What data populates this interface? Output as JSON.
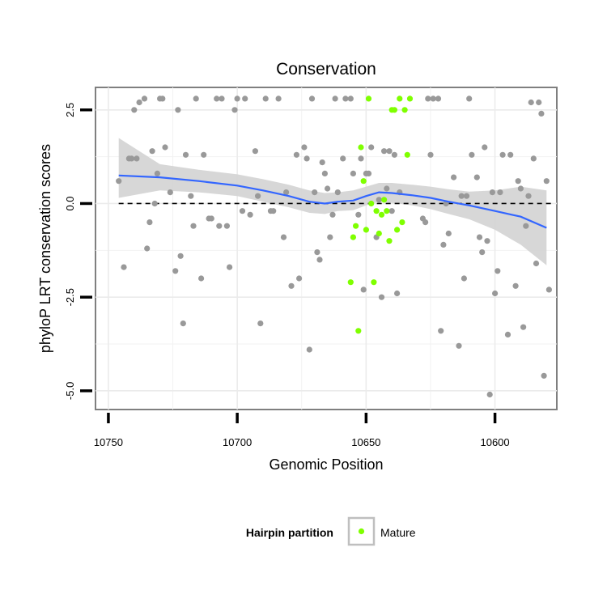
{
  "chart_data": {
    "type": "scatter",
    "title": "Conservation",
    "xlabel": "Genomic Position",
    "ylabel": "phyloP LRT conservation scores",
    "x_reversed": true,
    "xlim": [
      10755,
      10576
    ],
    "ylim": [
      -5.5,
      3.1
    ],
    "x_ticks": [
      10750,
      10700,
      10650,
      10600
    ],
    "x_tick_labels": [
      "10750",
      "10700",
      "10650",
      "10600"
    ],
    "y_ticks": [
      -5.0,
      -2.5,
      0.0,
      2.5
    ],
    "y_tick_labels": [
      "-5.0",
      "-2.5",
      "0.0",
      "2.5"
    ],
    "grid": true,
    "reference_line": {
      "y": 0,
      "style": "dashed"
    },
    "legend": {
      "title": "Hairpin partition",
      "position": "bottom",
      "entries": [
        {
          "label": "Mature",
          "color": "#7fff00"
        }
      ]
    },
    "colors": {
      "other": "#999999",
      "mature": "#7fff00",
      "smooth": "#3366ff",
      "band": "#d3d3d3"
    },
    "series": [
      {
        "group": "other",
        "points": [
          [
            10746,
            0.6
          ],
          [
            10744,
            -1.7
          ],
          [
            10742,
            1.2
          ],
          [
            10741,
            1.2
          ],
          [
            10740,
            2.5
          ],
          [
            10739,
            1.2
          ],
          [
            10738,
            2.7
          ],
          [
            10736,
            2.8
          ],
          [
            10735,
            -1.2
          ],
          [
            10734,
            -0.5
          ],
          [
            10733,
            1.4
          ],
          [
            10732,
            0.0
          ],
          [
            10731,
            0.8
          ],
          [
            10730,
            2.8
          ],
          [
            10729,
            2.8
          ],
          [
            10728,
            1.5
          ],
          [
            10726,
            0.3
          ],
          [
            10724,
            -1.8
          ],
          [
            10723,
            2.5
          ],
          [
            10722,
            -1.4
          ],
          [
            10721,
            -3.2
          ],
          [
            10720,
            1.3
          ],
          [
            10718,
            0.2
          ],
          [
            10717,
            -0.6
          ],
          [
            10716,
            2.8
          ],
          [
            10714,
            -2.0
          ],
          [
            10713,
            1.3
          ],
          [
            10711,
            -0.4
          ],
          [
            10710,
            -0.4
          ],
          [
            10708,
            2.8
          ],
          [
            10707,
            -0.6
          ],
          [
            10706,
            2.8
          ],
          [
            10704,
            -0.6
          ],
          [
            10703,
            -1.7
          ],
          [
            10701,
            2.5
          ],
          [
            10700,
            2.8
          ],
          [
            10698,
            -0.2
          ],
          [
            10697,
            2.8
          ],
          [
            10695,
            -0.3
          ],
          [
            10693,
            1.4
          ],
          [
            10692,
            0.2
          ],
          [
            10691,
            -3.2
          ],
          [
            10689,
            2.8
          ],
          [
            10687,
            -0.2
          ],
          [
            10686,
            -0.2
          ],
          [
            10684,
            2.8
          ],
          [
            10682,
            -0.9
          ],
          [
            10681,
            0.3
          ],
          [
            10679,
            -2.2
          ],
          [
            10677,
            1.3
          ],
          [
            10676,
            -2.0
          ],
          [
            10674,
            1.5
          ],
          [
            10673,
            1.2
          ],
          [
            10672,
            -3.9
          ],
          [
            10671,
            2.8
          ],
          [
            10670,
            0.3
          ],
          [
            10669,
            -1.3
          ],
          [
            10668,
            -1.5
          ],
          [
            10667,
            1.1
          ],
          [
            10666,
            0.8
          ],
          [
            10665,
            0.4
          ],
          [
            10664,
            -0.9
          ],
          [
            10663,
            -0.3
          ],
          [
            10662,
            2.8
          ],
          [
            10661,
            0.3
          ],
          [
            10659,
            1.2
          ],
          [
            10658,
            2.8
          ],
          [
            10656,
            2.8
          ],
          [
            10655,
            0.8
          ],
          [
            10653,
            -0.3
          ],
          [
            10652,
            1.2
          ],
          [
            10651,
            -2.3
          ],
          [
            10650,
            0.8
          ],
          [
            10649,
            0.8
          ],
          [
            10648,
            1.5
          ],
          [
            10646,
            -0.9
          ],
          [
            10645,
            0.1
          ],
          [
            10644,
            -2.5
          ],
          [
            10643,
            1.4
          ],
          [
            10642,
            0.4
          ],
          [
            10641,
            1.4
          ],
          [
            10640,
            -0.2
          ],
          [
            10639,
            1.3
          ],
          [
            10638,
            -2.4
          ],
          [
            10637,
            0.3
          ]
        ]
      },
      {
        "group": "other",
        "points": [
          [
            10628,
            -0.4
          ],
          [
            10627,
            -0.5
          ],
          [
            10626,
            2.8
          ],
          [
            10625,
            1.3
          ],
          [
            10624,
            2.8
          ],
          [
            10622,
            2.8
          ],
          [
            10621,
            -3.4
          ],
          [
            10620,
            -1.1
          ],
          [
            10619,
            0.0
          ],
          [
            10618,
            -0.8
          ],
          [
            10616,
            0.7
          ],
          [
            10614,
            -3.8
          ],
          [
            10613,
            0.2
          ],
          [
            10612,
            -2.0
          ],
          [
            10611,
            0.2
          ],
          [
            10610,
            2.8
          ],
          [
            10609,
            1.3
          ],
          [
            10607,
            0.7
          ],
          [
            10606,
            -0.9
          ],
          [
            10605,
            -1.3
          ],
          [
            10604,
            1.5
          ],
          [
            10603,
            -1.0
          ],
          [
            10602,
            -5.1
          ],
          [
            10601,
            0.3
          ],
          [
            10600,
            -2.4
          ],
          [
            10599,
            -1.8
          ],
          [
            10598,
            0.3
          ],
          [
            10597,
            1.3
          ],
          [
            10595,
            -3.5
          ],
          [
            10594,
            1.3
          ],
          [
            10592,
            -2.2
          ],
          [
            10591,
            0.6
          ],
          [
            10590,
            0.4
          ],
          [
            10589,
            -3.3
          ],
          [
            10588,
            -0.6
          ],
          [
            10587,
            0.2
          ],
          [
            10586,
            2.7
          ],
          [
            10585,
            1.2
          ],
          [
            10584,
            -1.6
          ],
          [
            10583,
            2.7
          ],
          [
            10582,
            2.4
          ],
          [
            10581,
            -4.6
          ],
          [
            10580,
            0.6
          ],
          [
            10579,
            -2.3
          ]
        ]
      },
      {
        "group": "mature",
        "points": [
          [
            10656,
            -2.1
          ],
          [
            10655,
            -0.9
          ],
          [
            10654,
            -0.6
          ],
          [
            10653,
            -3.4
          ],
          [
            10652,
            1.5
          ],
          [
            10651,
            0.6
          ],
          [
            10650,
            -0.7
          ],
          [
            10649,
            2.8
          ],
          [
            10648,
            0.0
          ],
          [
            10647,
            -2.1
          ],
          [
            10646,
            -0.2
          ],
          [
            10645,
            -0.8
          ],
          [
            10644,
            -0.3
          ],
          [
            10643,
            0.1
          ],
          [
            10642,
            -0.2
          ],
          [
            10641,
            -1.0
          ],
          [
            10640,
            2.5
          ],
          [
            10639,
            2.5
          ],
          [
            10638,
            -0.7
          ],
          [
            10637,
            2.8
          ],
          [
            10636,
            -0.5
          ],
          [
            10635,
            2.5
          ],
          [
            10634,
            1.3
          ],
          [
            10633,
            2.8
          ]
        ]
      }
    ],
    "smooth": {
      "x": [
        10746,
        10730,
        10715,
        10700,
        10690,
        10680,
        10672,
        10666,
        10661,
        10655,
        10650,
        10645,
        10640,
        10632,
        10625,
        10618,
        10610,
        10600,
        10590,
        10580
      ],
      "y": [
        0.75,
        0.7,
        0.6,
        0.48,
        0.35,
        0.2,
        0.05,
        0.0,
        0.05,
        0.08,
        0.2,
        0.3,
        0.28,
        0.22,
        0.15,
        0.05,
        -0.05,
        -0.2,
        -0.35,
        -0.65
      ],
      "lower": [
        0.15,
        0.35,
        0.3,
        0.2,
        0.05,
        -0.1,
        -0.25,
        -0.28,
        -0.2,
        -0.18,
        -0.05,
        0.05,
        0.02,
        -0.05,
        -0.15,
        -0.28,
        -0.42,
        -0.7,
        -1.1,
        -1.65
      ],
      "upper": [
        1.75,
        1.05,
        0.9,
        0.78,
        0.65,
        0.5,
        0.35,
        0.28,
        0.3,
        0.35,
        0.45,
        0.55,
        0.55,
        0.5,
        0.45,
        0.38,
        0.32,
        0.35,
        0.45,
        0.35
      ]
    }
  }
}
